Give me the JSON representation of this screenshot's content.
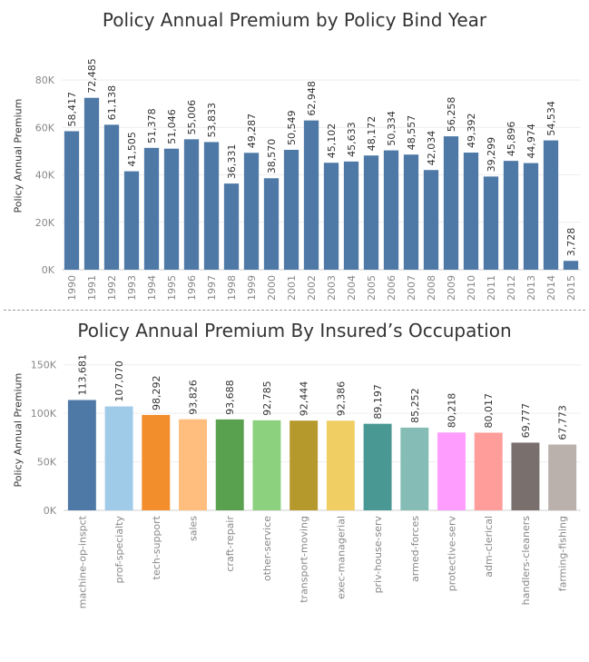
{
  "chart_data": [
    {
      "type": "bar",
      "title": "Policy Annual Premium by Policy Bind Year",
      "ylabel": "Policy Annual Premium",
      "xlabel": "",
      "ylim": [
        0,
        90000
      ],
      "yticks": [
        0,
        20000,
        40000,
        60000,
        80000
      ],
      "ytick_labels": [
        "0K",
        "20K",
        "40K",
        "60K",
        "80K"
      ],
      "color": "#4e79a7",
      "categories": [
        "1990",
        "1991",
        "1992",
        "1993",
        "1994",
        "1995",
        "1996",
        "1997",
        "1998",
        "1999",
        "2000",
        "2001",
        "2002",
        "2003",
        "2004",
        "2005",
        "2006",
        "2007",
        "2008",
        "2009",
        "2010",
        "2011",
        "2012",
        "2013",
        "2014",
        "2015"
      ],
      "values": [
        58417,
        72485,
        61138,
        41505,
        51378,
        51046,
        55006,
        53833,
        36331,
        49287,
        38570,
        50549,
        62948,
        45102,
        45633,
        48172,
        50334,
        48557,
        42034,
        56258,
        49392,
        39299,
        45896,
        44974,
        54534,
        3728
      ],
      "value_labels": [
        "58,417",
        "72,485",
        "61,138",
        "41,505",
        "51,378",
        "51,046",
        "55,006",
        "53,833",
        "36,331",
        "49,287",
        "38,570",
        "50,549",
        "62,948",
        "45,102",
        "45,633",
        "48,172",
        "50,334",
        "48,557",
        "42,034",
        "56,258",
        "49,392",
        "39,299",
        "45,896",
        "44,974",
        "54,534",
        "3,728"
      ]
    },
    {
      "type": "bar",
      "title": "Policy Annual Premium By Insured’s Occupation",
      "ylabel": "Policy Annual Premium",
      "xlabel": "",
      "ylim": [
        0,
        160000
      ],
      "yticks": [
        0,
        50000,
        100000,
        150000
      ],
      "ytick_labels": [
        "0K",
        "50K",
        "100K",
        "150K"
      ],
      "categories": [
        "machine-op-inspct",
        "prof-specialty",
        "tech-support",
        "sales",
        "craft-repair",
        "other-service",
        "transport-moving",
        "exec-managerial",
        "priv-house-serv",
        "armed-forces",
        "protective-serv",
        "adm-clerical",
        "handlers-cleaners",
        "farming-fishing"
      ],
      "values": [
        113681,
        107070,
        98292,
        93826,
        93688,
        92785,
        92444,
        92386,
        89197,
        85252,
        80218,
        80017,
        69777,
        67773
      ],
      "value_labels": [
        "113,681",
        "107,070",
        "98,292",
        "93,826",
        "93,688",
        "92,785",
        "92,444",
        "92,386",
        "89,197",
        "85,252",
        "80,218",
        "80,017",
        "69,777",
        "67,773"
      ],
      "colors": [
        "#4e79a7",
        "#a0cbe8",
        "#f28e2b",
        "#ffbe7d",
        "#59a14f",
        "#8cd17d",
        "#b6992d",
        "#f1ce63",
        "#499894",
        "#86bcb6",
        "#ff9dff",
        "#ff9d9a",
        "#79706e",
        "#bab0ac"
      ]
    }
  ]
}
